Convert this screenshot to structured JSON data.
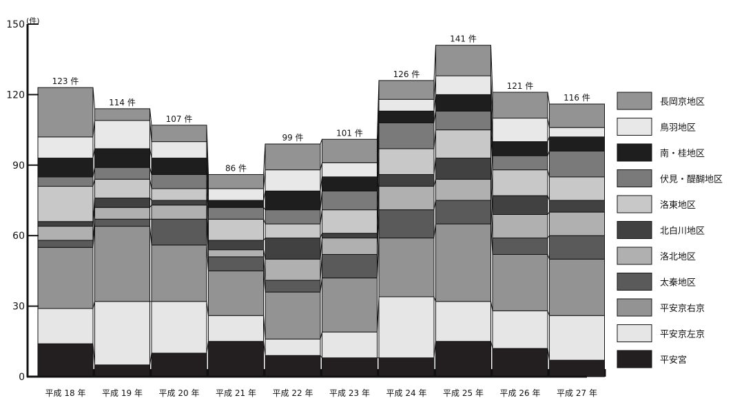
{
  "chart_data": {
    "type": "bar",
    "stacked": true,
    "title": "",
    "xlabel": "",
    "ylabel": "",
    "y_unit": "(件)",
    "ylim": [
      0,
      150
    ],
    "yticks": [
      0,
      30,
      60,
      90,
      120,
      150
    ],
    "grid": false,
    "legend_position": "right",
    "categories": [
      "平成 18 年",
      "平成 19 年",
      "平成 20 年",
      "平成 21 年",
      "平成 22 年",
      "平成 23 年",
      "平成 24 年",
      "平成 25 年",
      "平成 26 年",
      "平成 27 年"
    ],
    "totals": [
      123,
      114,
      107,
      86,
      99,
      101,
      126,
      141,
      121,
      116
    ],
    "total_labels": [
      "123 件",
      "114 件",
      "107 件",
      "86 件",
      "99 件",
      "101 件",
      "126 件",
      "141 件",
      "121 件",
      "116 件"
    ],
    "series": [
      {
        "name": "平安宮",
        "color": "#231f20",
        "values": [
          14,
          5,
          10,
          15,
          9,
          8,
          8,
          15,
          12,
          7
        ]
      },
      {
        "name": "平安京左京",
        "color": "#e6e6e6",
        "values": [
          15,
          27,
          22,
          11,
          7,
          11,
          26,
          17,
          16,
          19
        ]
      },
      {
        "name": "平安京右京",
        "color": "#939393",
        "values": [
          26,
          32,
          24,
          19,
          20,
          23,
          25,
          33,
          24,
          24
        ]
      },
      {
        "name": "太秦地区",
        "color": "#5a5a5a",
        "values": [
          3,
          3,
          11,
          6,
          5,
          10,
          12,
          10,
          7,
          10
        ]
      },
      {
        "name": "洛北地区",
        "color": "#b0b0b0",
        "values": [
          6,
          5,
          6,
          3,
          9,
          7,
          10,
          9,
          10,
          10
        ]
      },
      {
        "name": "北白川地区",
        "color": "#414141",
        "values": [
          2,
          4,
          2,
          4,
          9,
          2,
          5,
          9,
          8,
          5
        ]
      },
      {
        "name": "洛東地区",
        "color": "#c8c8c8",
        "values": [
          15,
          8,
          5,
          9,
          6,
          10,
          11,
          12,
          11,
          10
        ]
      },
      {
        "name": "伏見・醍醐地区",
        "color": "#7a7a7a",
        "values": [
          4,
          5,
          6,
          5,
          6,
          8,
          11,
          8,
          6,
          11
        ]
      },
      {
        "name": "南・桂地区",
        "color": "#1e1e1e",
        "values": [
          8,
          8,
          7,
          3,
          8,
          6,
          5,
          7,
          6,
          6
        ]
      },
      {
        "name": "鳥羽地区",
        "color": "#e8e8e8",
        "values": [
          9,
          12,
          7,
          5,
          9,
          6,
          5,
          8,
          10,
          4
        ]
      },
      {
        "name": "長岡京地区",
        "color": "#939393",
        "values": [
          21,
          5,
          7,
          6,
          11,
          10,
          8,
          13,
          11,
          10
        ]
      }
    ]
  }
}
